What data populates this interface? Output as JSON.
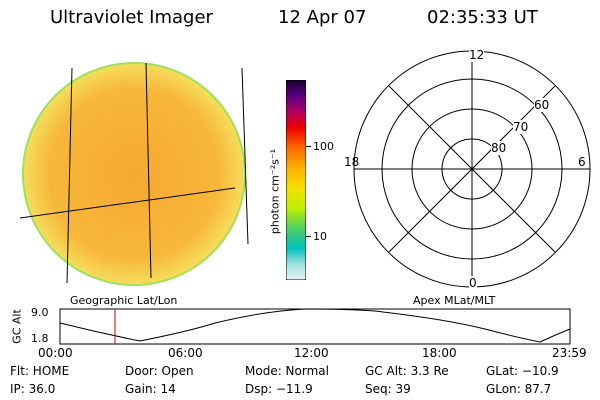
{
  "header": {
    "title": "Ultraviolet Imager",
    "date": "12 Apr 07",
    "time": "02:35:33 UT"
  },
  "colorbar": {
    "unit_label": "photon cm⁻²s⁻¹",
    "tick_labels": [
      "100",
      "10"
    ],
    "colors": [
      "#1a0030",
      "#3b0060",
      "#6a0090",
      "#a0006a",
      "#d0003a",
      "#f00000",
      "#ff4a00",
      "#ff8a00",
      "#ffb000",
      "#ffd000",
      "#f5f000",
      "#c8f000",
      "#80e000",
      "#30d070",
      "#00c0c0",
      "#80e0e0",
      "#d0f0f0"
    ]
  },
  "image_panel": {
    "label": "Geographic Lat/Lon",
    "fill_color": "#f7b83a",
    "edge_color": "#9fe05a"
  },
  "polar_panel": {
    "label": "Apex MLat/MLT",
    "mlt_labels": {
      "top": "12",
      "left": "18",
      "right": "6",
      "bottom": "0"
    },
    "lat_labels": [
      "60",
      "70",
      "80"
    ]
  },
  "altitude_plot": {
    "ylabel": "GC Alt",
    "yticks": [
      "9.0",
      "1.8"
    ],
    "xticks": [
      "00:00",
      "06:00",
      "12:00",
      "18:00",
      "23:59"
    ],
    "marker_time": "02:35",
    "marker_color": "#cc0000"
  },
  "status": {
    "flt": "Flt: HOME",
    "door": "Door: Open",
    "mode": "Mode: Normal",
    "gc_alt": "GC Alt: 3.3 Re",
    "glat": "GLat: −10.9",
    "ip": "IP: 36.0",
    "gain": "Gain: 14",
    "dsp": "Dsp: −11.9",
    "seq": "Seq: 39",
    "glon": "GLon: 87.7"
  }
}
